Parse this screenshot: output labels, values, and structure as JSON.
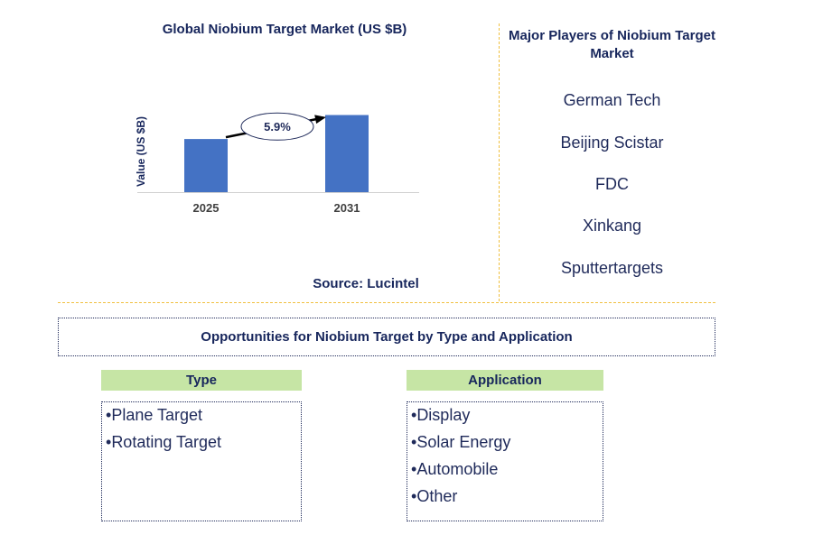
{
  "chart_data": {
    "type": "bar",
    "title": "Global Niobium Target Market (US $B)",
    "ylabel": "Value (US $B)",
    "categories": [
      "2025",
      "2031"
    ],
    "values": [
      0.62,
      0.9
    ],
    "ylim": [
      0,
      1.0
    ],
    "annotation": "5.9%",
    "bar_color": "#4472c4",
    "source": "Source: Lucintel"
  },
  "players": {
    "title": "Major Players of Niobium Target Market",
    "items": [
      "German Tech",
      "Beijing Scistar",
      "FDC",
      "Xinkang",
      "Sputtertargets"
    ]
  },
  "opportunities": {
    "title": "Opportunities for Niobium Target by Type and Application",
    "type": {
      "header": "Type",
      "items": [
        "Plane Target",
        "Rotating Target"
      ]
    },
    "application": {
      "header": "Application",
      "items": [
        "Display",
        "Solar Energy",
        "Automobile",
        "Other"
      ]
    }
  }
}
